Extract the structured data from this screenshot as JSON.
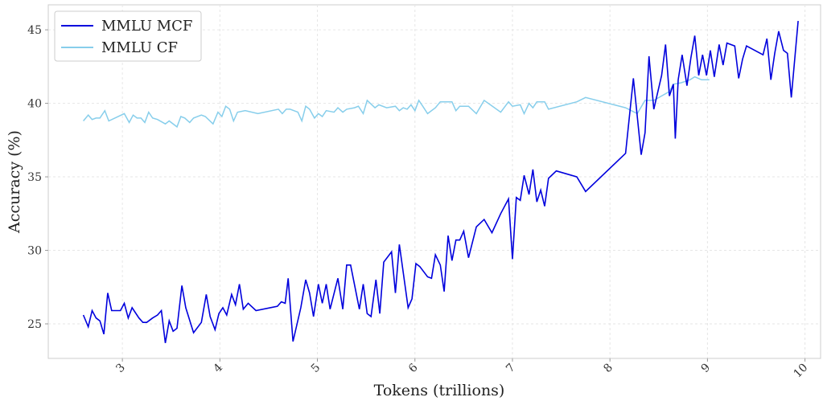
{
  "chart_data": {
    "type": "line",
    "xlabel": "Tokens (trillions)",
    "ylabel": "Accuracy (%)",
    "xlim": [
      2.24,
      10.16
    ],
    "ylim": [
      22.65,
      46.7
    ],
    "xticks": [
      3,
      4,
      5,
      6,
      7,
      8,
      9,
      10
    ],
    "yticks": [
      25,
      30,
      35,
      40,
      45
    ],
    "grid": true,
    "legend": "upper left",
    "series": [
      {
        "name": "MMLU MCF",
        "color": "#0000dd",
        "x": [
          2.6,
          2.65,
          2.69,
          2.73,
          2.77,
          2.81,
          2.85,
          2.89,
          2.98,
          3.02,
          3.06,
          3.1,
          3.17,
          3.21,
          3.25,
          3.31,
          3.36,
          3.4,
          3.44,
          3.48,
          3.52,
          3.56,
          3.61,
          3.65,
          3.73,
          3.81,
          3.86,
          3.9,
          3.95,
          3.99,
          4.03,
          4.07,
          4.12,
          4.16,
          4.2,
          4.24,
          4.29,
          4.37,
          4.59,
          4.63,
          4.67,
          4.7,
          4.75,
          4.83,
          4.88,
          4.92,
          4.96,
          5.01,
          5.05,
          5.09,
          5.13,
          5.21,
          5.26,
          5.3,
          5.34,
          5.43,
          5.47,
          5.51,
          5.55,
          5.6,
          5.64,
          5.68,
          5.76,
          5.8,
          5.84,
          5.93,
          5.97,
          6.01,
          6.05,
          6.13,
          6.17,
          6.21,
          6.26,
          6.3,
          6.34,
          6.38,
          6.42,
          6.46,
          6.5,
          6.55,
          6.63,
          6.71,
          6.79,
          6.88,
          6.96,
          7.0,
          7.04,
          7.08,
          7.12,
          7.17,
          7.21,
          7.25,
          7.29,
          7.33,
          7.37,
          7.45,
          7.66,
          7.75,
          8.16,
          8.24,
          8.32,
          8.36,
          8.4,
          8.45,
          8.53,
          8.57,
          8.61,
          8.65,
          8.67,
          8.7,
          8.74,
          8.79,
          8.83,
          8.87,
          8.91,
          8.95,
          8.99,
          9.03,
          9.07,
          9.12,
          9.16,
          9.2,
          9.28,
          9.32,
          9.36,
          9.4,
          9.57,
          9.61,
          9.65,
          9.69,
          9.73,
          9.78,
          9.82,
          9.86,
          9.93
        ],
        "values": [
          25.6,
          24.8,
          25.9,
          25.4,
          25.2,
          24.3,
          27.1,
          25.9,
          25.9,
          26.4,
          25.4,
          26.1,
          25.4,
          25.1,
          25.1,
          25.4,
          25.6,
          25.9,
          23.7,
          25.2,
          24.5,
          24.7,
          27.6,
          26.1,
          24.4,
          25.1,
          27.0,
          25.5,
          24.6,
          25.7,
          26.1,
          25.6,
          27.0,
          26.3,
          27.7,
          26.0,
          26.4,
          25.9,
          26.2,
          26.5,
          26.4,
          28.1,
          23.8,
          26.1,
          28.0,
          27.1,
          25.5,
          27.7,
          26.4,
          27.7,
          26.0,
          28.1,
          26.0,
          29.0,
          29.0,
          26.0,
          27.7,
          25.7,
          25.5,
          28.0,
          25.7,
          29.2,
          29.9,
          27.1,
          30.4,
          26.1,
          26.7,
          29.1,
          28.9,
          28.2,
          28.1,
          29.7,
          29.0,
          27.2,
          31.0,
          29.3,
          30.7,
          30.7,
          31.3,
          29.5,
          31.6,
          32.1,
          31.2,
          32.5,
          33.5,
          29.4,
          33.6,
          33.4,
          35.1,
          33.8,
          35.5,
          33.3,
          34.1,
          33.0,
          34.9,
          35.4,
          35.0,
          34.0,
          36.6,
          41.7,
          36.5,
          38.0,
          43.2,
          39.6,
          41.9,
          44.0,
          40.5,
          41.3,
          37.6,
          41.6,
          43.3,
          41.2,
          43.1,
          44.6,
          41.9,
          43.3,
          41.9,
          43.6,
          41.8,
          44.0,
          42.6,
          44.1,
          43.9,
          41.7,
          43.0,
          43.9,
          43.3,
          44.4,
          41.6,
          43.4,
          44.9,
          43.6,
          43.4,
          40.4,
          45.6
        ]
      },
      {
        "name": "MMLU CF",
        "color": "#87ceeb",
        "x": [
          2.6,
          2.65,
          2.69,
          2.73,
          2.77,
          2.82,
          2.86,
          3.02,
          3.07,
          3.11,
          3.15,
          3.19,
          3.23,
          3.27,
          3.31,
          3.36,
          3.44,
          3.48,
          3.56,
          3.6,
          3.64,
          3.69,
          3.73,
          3.81,
          3.85,
          3.93,
          3.98,
          4.02,
          4.06,
          4.1,
          4.14,
          4.18,
          4.26,
          4.39,
          4.6,
          4.64,
          4.68,
          4.72,
          4.8,
          4.84,
          4.88,
          4.92,
          4.97,
          5.01,
          5.05,
          5.09,
          5.17,
          5.21,
          5.26,
          5.3,
          5.38,
          5.42,
          5.47,
          5.51,
          5.59,
          5.63,
          5.71,
          5.8,
          5.84,
          5.88,
          5.92,
          5.96,
          6.0,
          6.04,
          6.08,
          6.13,
          6.21,
          6.26,
          6.38,
          6.42,
          6.46,
          6.55,
          6.63,
          6.71,
          6.88,
          6.96,
          7.0,
          7.08,
          7.12,
          7.17,
          7.21,
          7.25,
          7.33,
          7.37,
          7.66,
          7.75,
          8.16,
          8.28,
          8.36,
          8.45,
          8.53,
          8.61,
          8.65,
          8.73,
          8.82,
          8.87,
          8.94,
          9.02
        ],
        "values": [
          38.8,
          39.2,
          38.9,
          39.0,
          39.0,
          39.5,
          38.8,
          39.3,
          38.7,
          39.2,
          39.0,
          39.0,
          38.7,
          39.4,
          39.0,
          38.9,
          38.6,
          38.8,
          38.4,
          39.1,
          39.0,
          38.7,
          39.0,
          39.2,
          39.1,
          38.6,
          39.4,
          39.1,
          39.8,
          39.6,
          38.8,
          39.4,
          39.5,
          39.3,
          39.6,
          39.3,
          39.6,
          39.6,
          39.4,
          38.8,
          39.8,
          39.6,
          39.0,
          39.3,
          39.1,
          39.5,
          39.4,
          39.7,
          39.4,
          39.6,
          39.7,
          39.8,
          39.3,
          40.2,
          39.7,
          39.9,
          39.7,
          39.8,
          39.5,
          39.7,
          39.6,
          39.9,
          39.5,
          40.2,
          39.8,
          39.3,
          39.7,
          40.1,
          40.1,
          39.5,
          39.8,
          39.8,
          39.3,
          40.2,
          39.4,
          40.1,
          39.8,
          39.9,
          39.3,
          40.0,
          39.7,
          40.1,
          40.1,
          39.6,
          40.1,
          40.4,
          39.7,
          39.3,
          40.2,
          40.2,
          40.5,
          40.8,
          41.3,
          41.4,
          41.6,
          41.8,
          41.6,
          41.6
        ]
      }
    ]
  }
}
